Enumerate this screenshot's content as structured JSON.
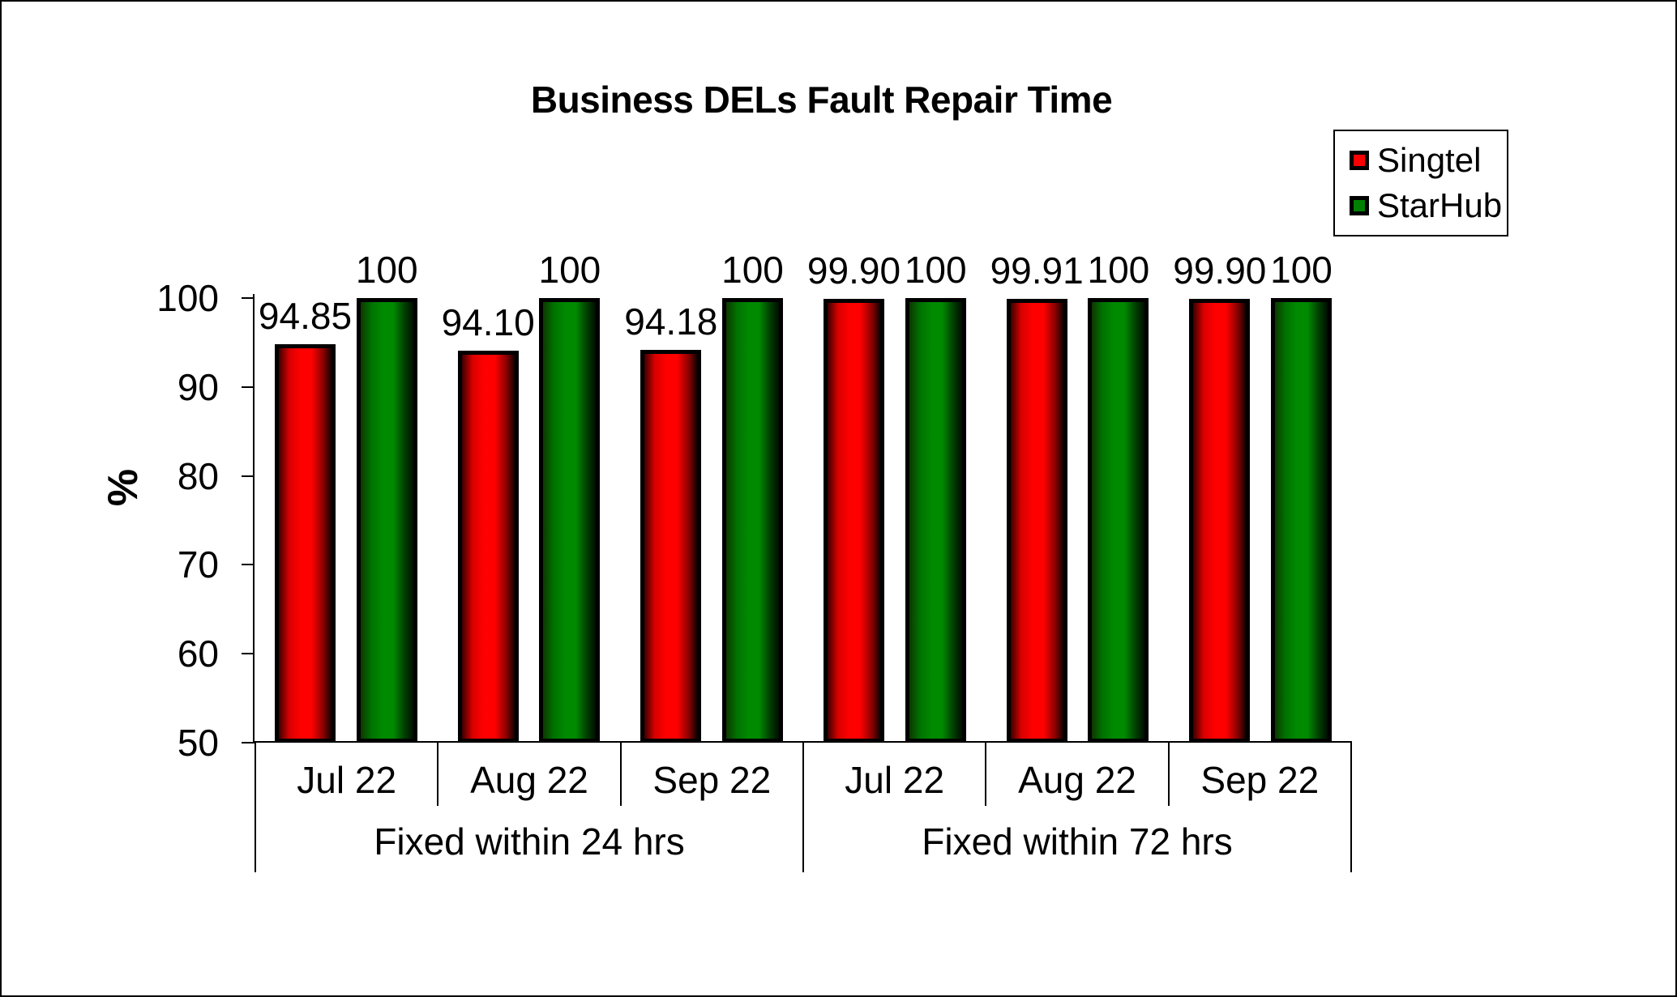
{
  "chart_data": {
    "type": "bar",
    "title": "Business DELs Fault Repair Time",
    "xlabel": "",
    "ylabel": "%",
    "ylim": [
      50,
      100
    ],
    "yticks": [
      50,
      60,
      70,
      80,
      90,
      100
    ],
    "grid": false,
    "legend_position": "top-right",
    "categories": [
      "Jul 22",
      "Aug 22",
      "Sep 22",
      "Jul 22",
      "Aug 22",
      "Sep 22"
    ],
    "groups": [
      {
        "label": "Fixed within 24 hrs",
        "span": 3
      },
      {
        "label": "Fixed within 72 hrs",
        "span": 3
      }
    ],
    "series": [
      {
        "name": "Singtel",
        "color": "#ff0000",
        "values": [
          94.85,
          94.1,
          94.18,
          99.9,
          99.91,
          99.9
        ],
        "labels": [
          "94.85",
          "94.10",
          "94.18",
          "99.90",
          "99.91",
          "99.90"
        ]
      },
      {
        "name": "StarHub",
        "color": "#008000",
        "values": [
          100,
          100,
          100,
          100,
          100,
          100
        ],
        "labels": [
          "100",
          "100",
          "100",
          "100",
          "100",
          "100"
        ]
      }
    ]
  }
}
